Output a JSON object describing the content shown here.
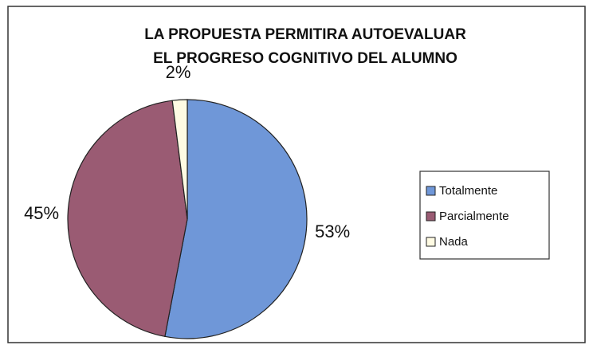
{
  "chart_data": {
    "type": "pie",
    "title": [
      "LA PROPUESTA PERMITIRA AUTOEVALUAR",
      "EL PROGRESO COGNITIVO DEL ALUMNO"
    ],
    "categories": [
      "Totalmente",
      "Parcialmente",
      "Nada"
    ],
    "values": [
      53,
      45,
      2
    ],
    "value_labels": [
      "53%",
      "45%",
      "2%"
    ],
    "colors": [
      "#6f97d8",
      "#9a5b73",
      "#fffbe3"
    ],
    "legend": "right"
  }
}
